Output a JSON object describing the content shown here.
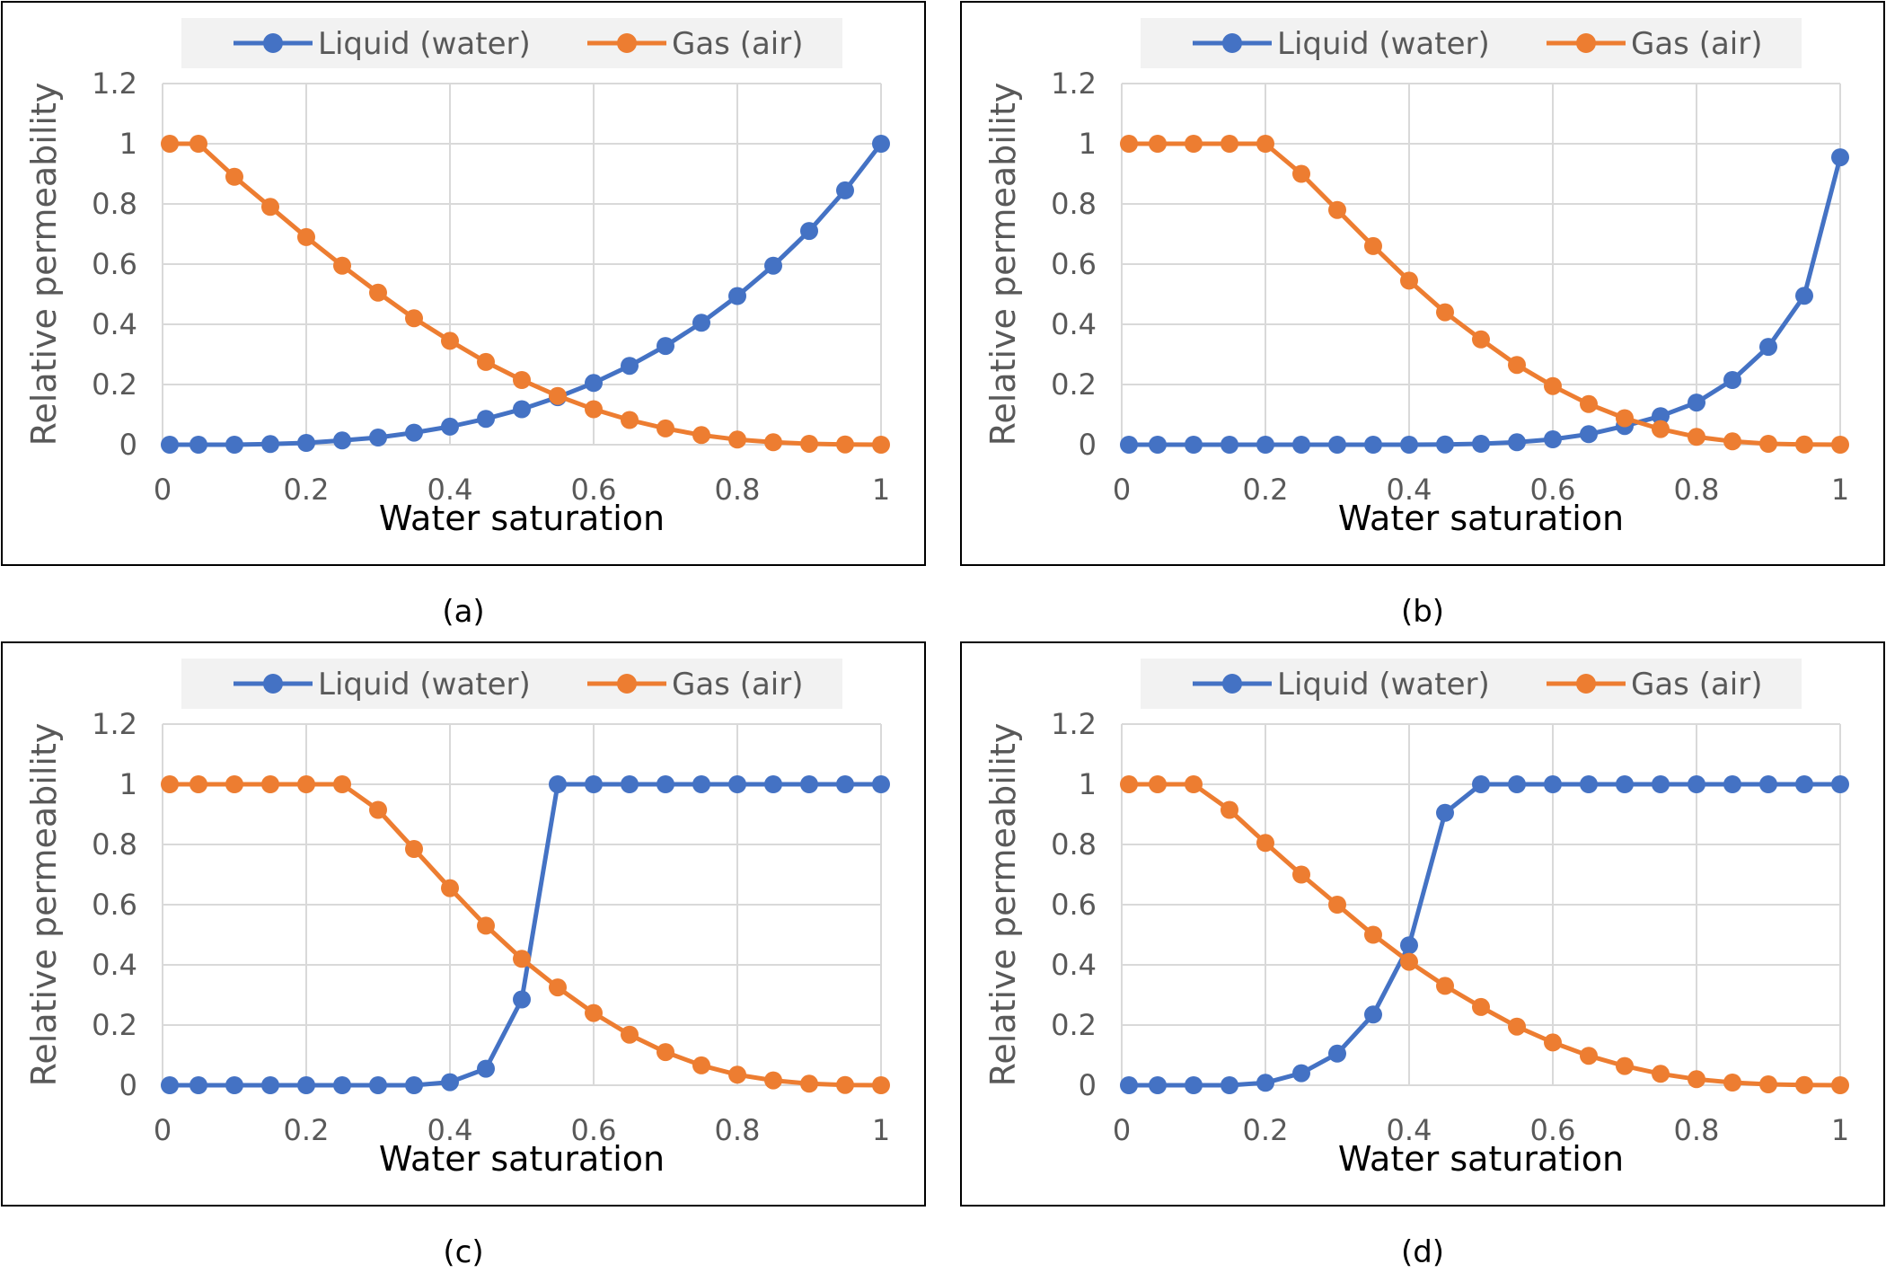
{
  "chart_data": [
    {
      "type": "line",
      "caption": "(a)",
      "xlabel": "Water saturation",
      "ylabel": "Relative permeability",
      "xlim": [
        0,
        1
      ],
      "ylim": [
        0,
        1.2
      ],
      "xticks": [
        "0",
        "0.2",
        "0.4",
        "0.6",
        "0.8",
        "1"
      ],
      "yticks": [
        "0",
        "0.2",
        "0.4",
        "0.6",
        "0.8",
        "1",
        "1.2"
      ],
      "grid": "vertical and horizontal",
      "legend_position": "top",
      "x": [
        0.01,
        0.05,
        0.1,
        0.15,
        0.2,
        0.25,
        0.3,
        0.35,
        0.4,
        0.45,
        0.5,
        0.55,
        0.6,
        0.65,
        0.7,
        0.75,
        0.8,
        0.85,
        0.9,
        0.95,
        1.0
      ],
      "series": [
        {
          "name": "Liquid (water)",
          "color": "#4472c4",
          "values": [
            0,
            0,
            0,
            0.002,
            0.006,
            0.014,
            0.024,
            0.04,
            0.06,
            0.086,
            0.118,
            0.158,
            0.205,
            0.262,
            0.328,
            0.405,
            0.494,
            0.595,
            0.71,
            0.845,
            1.0
          ]
        },
        {
          "name": "Gas (air)",
          "color": "#ed7d31",
          "values": [
            1.0,
            1.0,
            0.89,
            0.79,
            0.69,
            0.595,
            0.505,
            0.42,
            0.345,
            0.275,
            0.215,
            0.162,
            0.118,
            0.082,
            0.054,
            0.032,
            0.017,
            0.008,
            0.003,
            0.001,
            0
          ]
        }
      ]
    },
    {
      "type": "line",
      "caption": "(b)",
      "xlabel": "Water saturation",
      "ylabel": "Relative permeability",
      "xlim": [
        0,
        1
      ],
      "ylim": [
        0,
        1.2
      ],
      "xticks": [
        "0",
        "0.2",
        "0.4",
        "0.6",
        "0.8",
        "1"
      ],
      "yticks": [
        "0",
        "0.2",
        "0.4",
        "0.6",
        "0.8",
        "1",
        "1.2"
      ],
      "grid": "vertical and horizontal",
      "legend_position": "top",
      "x": [
        0.01,
        0.05,
        0.1,
        0.15,
        0.2,
        0.25,
        0.3,
        0.35,
        0.4,
        0.45,
        0.5,
        0.55,
        0.6,
        0.65,
        0.7,
        0.75,
        0.8,
        0.85,
        0.9,
        0.95,
        1.0
      ],
      "series": [
        {
          "name": "Liquid (water)",
          "color": "#4472c4",
          "values": [
            0,
            0,
            0,
            0,
            0,
            0,
            0,
            0,
            0,
            0.001,
            0.003,
            0.008,
            0.018,
            0.035,
            0.062,
            0.095,
            0.14,
            0.215,
            0.325,
            0.495,
            0.955
          ]
        },
        {
          "name": "Gas (air)",
          "color": "#ed7d31",
          "values": [
            1.0,
            1.0,
            1.0,
            1.0,
            1.0,
            0.9,
            0.78,
            0.66,
            0.545,
            0.44,
            0.35,
            0.265,
            0.195,
            0.135,
            0.088,
            0.052,
            0.026,
            0.011,
            0.003,
            0.0005,
            0
          ]
        }
      ]
    },
    {
      "type": "line",
      "caption": "(c)",
      "xlabel": "Water saturation",
      "ylabel": "Relative permeability",
      "xlim": [
        0,
        1
      ],
      "ylim": [
        0,
        1.2
      ],
      "xticks": [
        "0",
        "0.2",
        "0.4",
        "0.6",
        "0.8",
        "1"
      ],
      "yticks": [
        "0",
        "0.2",
        "0.4",
        "0.6",
        "0.8",
        "1",
        "1.2"
      ],
      "grid": "vertical and horizontal",
      "legend_position": "top",
      "x": [
        0.01,
        0.05,
        0.1,
        0.15,
        0.2,
        0.25,
        0.3,
        0.35,
        0.4,
        0.45,
        0.5,
        0.55,
        0.6,
        0.65,
        0.7,
        0.75,
        0.8,
        0.85,
        0.9,
        0.95,
        1.0
      ],
      "series": [
        {
          "name": "Liquid (water)",
          "color": "#4472c4",
          "values": [
            0,
            0,
            0,
            0,
            0,
            0,
            0,
            0,
            0.01,
            0.055,
            0.285,
            1.0,
            1.0,
            1.0,
            1.0,
            1.0,
            1.0,
            1.0,
            1.0,
            1.0,
            1.0
          ]
        },
        {
          "name": "Gas (air)",
          "color": "#ed7d31",
          "values": [
            1.0,
            1.0,
            1.0,
            1.0,
            1.0,
            1.0,
            0.915,
            0.785,
            0.655,
            0.53,
            0.42,
            0.325,
            0.24,
            0.168,
            0.11,
            0.066,
            0.035,
            0.016,
            0.005,
            0.001,
            0
          ]
        }
      ]
    },
    {
      "type": "line",
      "caption": "(d)",
      "xlabel": "Water saturation",
      "ylabel": "Relative permeability",
      "xlim": [
        0,
        1
      ],
      "ylim": [
        0,
        1.2
      ],
      "xticks": [
        "0",
        "0.2",
        "0.4",
        "0.6",
        "0.8",
        "1"
      ],
      "yticks": [
        "0",
        "0.2",
        "0.4",
        "0.6",
        "0.8",
        "1",
        "1.2"
      ],
      "grid": "vertical and horizontal",
      "legend_position": "top",
      "x": [
        0.01,
        0.05,
        0.1,
        0.15,
        0.2,
        0.25,
        0.3,
        0.35,
        0.4,
        0.45,
        0.5,
        0.55,
        0.6,
        0.65,
        0.7,
        0.75,
        0.8,
        0.85,
        0.9,
        0.95,
        1.0
      ],
      "series": [
        {
          "name": "Liquid (water)",
          "color": "#4472c4",
          "values": [
            0,
            0,
            0,
            0,
            0.008,
            0.04,
            0.105,
            0.235,
            0.465,
            0.905,
            1.0,
            1.0,
            1.0,
            1.0,
            1.0,
            1.0,
            1.0,
            1.0,
            1.0,
            1.0,
            1.0
          ]
        },
        {
          "name": "Gas (air)",
          "color": "#ed7d31",
          "values": [
            1.0,
            1.0,
            1.0,
            0.915,
            0.805,
            0.7,
            0.6,
            0.5,
            0.41,
            0.33,
            0.26,
            0.195,
            0.142,
            0.098,
            0.064,
            0.038,
            0.02,
            0.009,
            0.003,
            0.001,
            0
          ]
        }
      ]
    }
  ]
}
